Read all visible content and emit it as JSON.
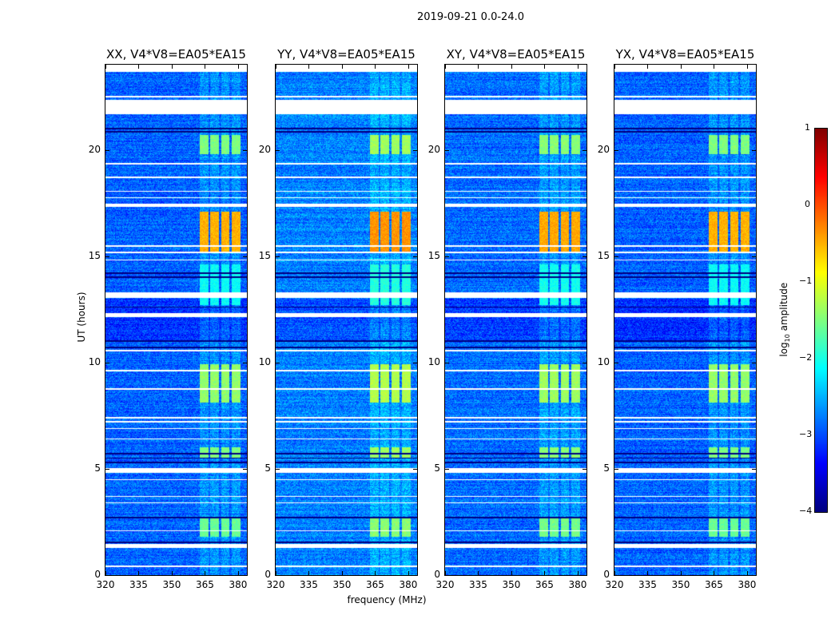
{
  "chart_data": {
    "type": "heatmap",
    "title": "2019-09-21 0.0-24.0",
    "xlabel": "frequency (MHz)",
    "ylabel": "UT (hours)",
    "xlim": [
      320,
      384
    ],
    "ylim": [
      0,
      24
    ],
    "xticks": [
      "320",
      "335",
      "350",
      "365",
      "380"
    ],
    "yticks": [
      "0",
      "5",
      "10",
      "15",
      "20"
    ],
    "panels": [
      {
        "title": "XX, V4*V8=EA05*EA15",
        "level_offset": 0
      },
      {
        "title": "YY, V4*V8=EA05*EA15",
        "level_offset": 0.15
      },
      {
        "title": "XY, V4*V8=EA05*EA15",
        "level_offset": 0.05
      },
      {
        "title": "YX, V4*V8=EA05*EA15",
        "level_offset": 0
      }
    ],
    "colorbar": {
      "label_main": "log",
      "label_sub": "10",
      "label_rest": " amplitude",
      "range": [
        -4,
        1
      ],
      "ticks": [
        "1",
        "0",
        "−1",
        "−2",
        "−3",
        "−4"
      ],
      "colormap": "jet"
    },
    "background_level": -2.9,
    "rfi_subbands_mhz": [
      [
        362.5,
        366.5
      ],
      [
        367.5,
        371.5
      ],
      [
        372.5,
        376
      ],
      [
        377,
        381
      ]
    ],
    "rfi_periods_hours": [
      {
        "start": 19.8,
        "end": 20.7,
        "level": -1.5
      },
      {
        "start": 15.2,
        "end": 17.1,
        "level": -0.5
      },
      {
        "start": 12.7,
        "end": 14.6,
        "level": -2.1
      },
      {
        "start": 8.1,
        "end": 9.9,
        "level": -1.4
      },
      {
        "start": 5.5,
        "end": 6.0,
        "level": -1.5
      },
      {
        "start": 1.8,
        "end": 2.7,
        "level": -1.6
      }
    ],
    "flagged_hours": [
      [
        23.65,
        24
      ],
      [
        22.45,
        22.55
      ],
      [
        21.68,
        22.36
      ],
      [
        19.3,
        19.38
      ],
      [
        18.68,
        18.74
      ],
      [
        18.02,
        18.08
      ],
      [
        17.72,
        17.78
      ],
      [
        17.3,
        17.45
      ],
      [
        15.42,
        15.5
      ],
      [
        15.15,
        15.22
      ],
      [
        14.78,
        14.84
      ],
      [
        13.05,
        13.3
      ],
      [
        12.12,
        12.32
      ],
      [
        10.52,
        10.6
      ],
      [
        9.58,
        9.64
      ],
      [
        8.72,
        8.78
      ],
      [
        7.38,
        7.44
      ],
      [
        7.18,
        7.24
      ],
      [
        6.86,
        6.92
      ],
      [
        6.38,
        6.44
      ],
      [
        4.8,
        5.02
      ],
      [
        4.48,
        4.52
      ],
      [
        3.68,
        3.72
      ],
      [
        3.38,
        3.42
      ],
      [
        2.08,
        2.12
      ],
      [
        1.28,
        1.48
      ],
      [
        0.38,
        0.44
      ]
    ],
    "dark_lines_hours": [
      21.0,
      20.85,
      14.2,
      14.0,
      12.6,
      11.0,
      10.7,
      5.7,
      5.5,
      5.3,
      2.7,
      1.55
    ]
  }
}
